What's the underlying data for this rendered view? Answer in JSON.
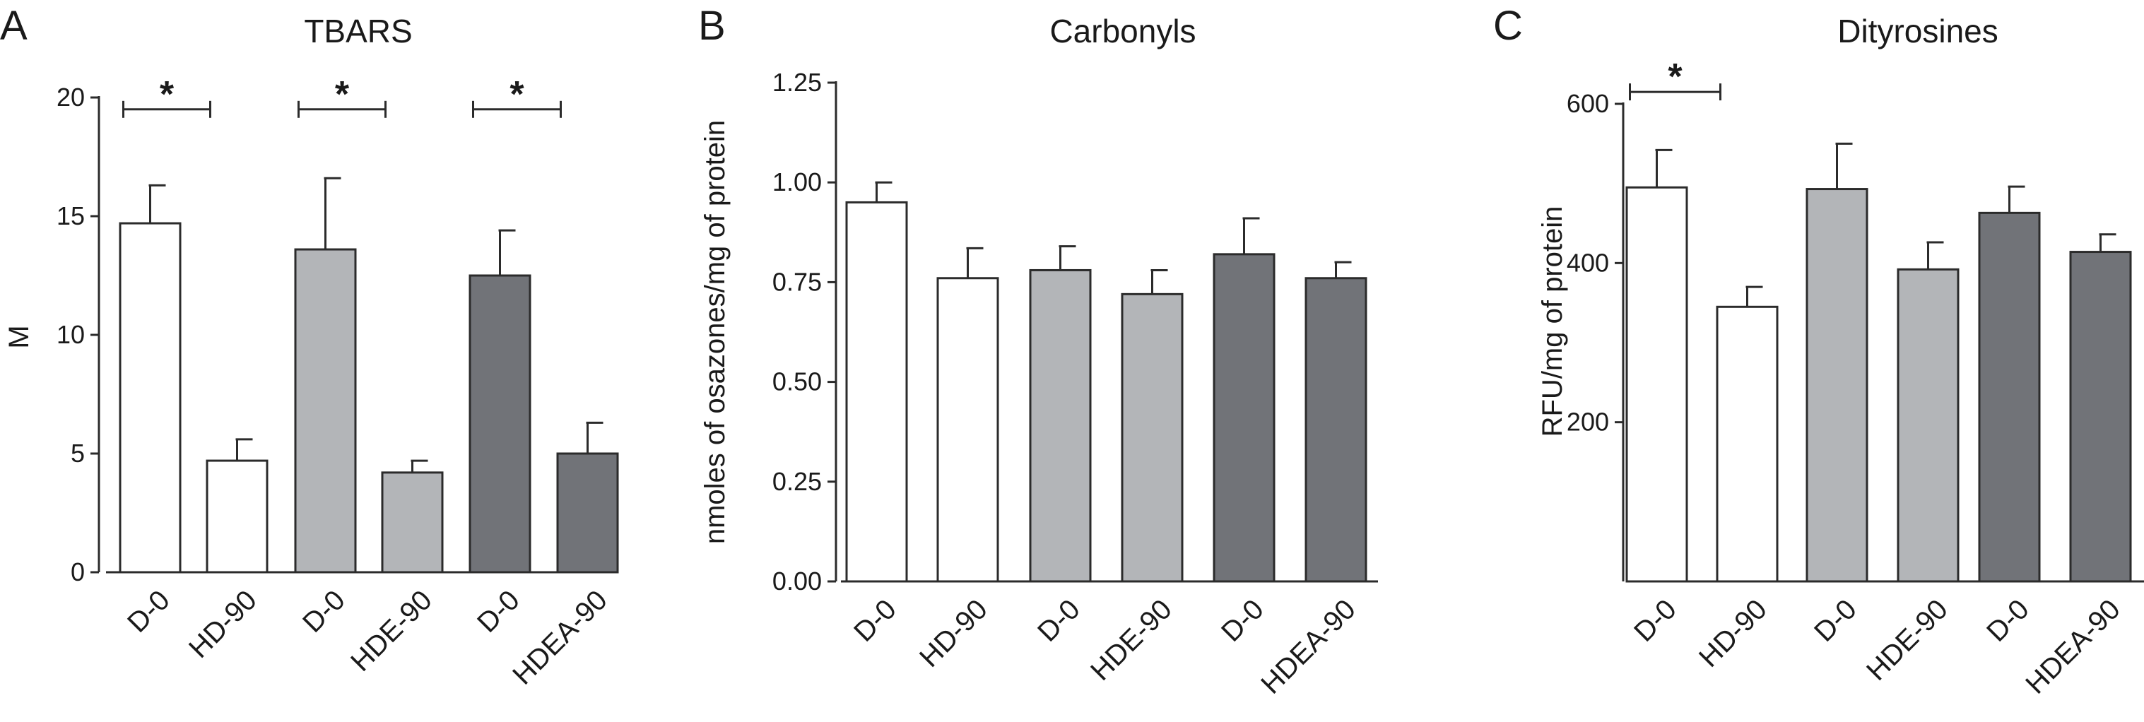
{
  "colors": {
    "white": "#ffffff",
    "light_gray": "#b3b5b8",
    "dark_gray": "#717378",
    "stroke": "#2b2b2b"
  },
  "chart_data": [
    {
      "type": "bar",
      "panel": "A",
      "title": "TBARS",
      "ylabel": "M",
      "xlabel": "",
      "ylim": [
        0,
        20
      ],
      "yticks": [
        0,
        5,
        10,
        15,
        20
      ],
      "ytick_labels": [
        "0",
        "5",
        "10",
        "15",
        "20"
      ],
      "categories": [
        "D-0",
        "HD-90",
        "D-0",
        "HDE-90",
        "D-0",
        "HDEA-90"
      ],
      "values": [
        14.7,
        4.7,
        13.6,
        4.2,
        12.5,
        5.0
      ],
      "errors": [
        1.6,
        0.9,
        3.0,
        0.5,
        1.9,
        1.3
      ],
      "bar_colors": [
        "white",
        "white",
        "light_gray",
        "light_gray",
        "dark_gray",
        "dark_gray"
      ],
      "significance": [
        {
          "from": 0,
          "to": 1,
          "label": "*"
        },
        {
          "from": 2,
          "to": 3,
          "label": "*"
        },
        {
          "from": 4,
          "to": 5,
          "label": "*"
        }
      ],
      "bracket_level": 19.5
    },
    {
      "type": "bar",
      "panel": "B",
      "title": "Carbonyls",
      "ylabel": "nmoles of osazones/mg of protein",
      "xlabel": "",
      "ylim": [
        0,
        1.25
      ],
      "yticks": [
        0,
        0.25,
        0.5,
        0.75,
        1.0,
        1.25
      ],
      "ytick_labels": [
        "0.00",
        "0.25",
        "0.50",
        "0.75",
        "1.00",
        "1.25"
      ],
      "categories": [
        "D-0",
        "HD-90",
        "D-0",
        "HDE-90",
        "D-0",
        "HDEA-90"
      ],
      "values": [
        0.95,
        0.76,
        0.78,
        0.72,
        0.82,
        0.76
      ],
      "errors": [
        0.05,
        0.075,
        0.06,
        0.06,
        0.09,
        0.04
      ],
      "bar_colors": [
        "white",
        "white",
        "light_gray",
        "light_gray",
        "dark_gray",
        "dark_gray"
      ],
      "significance": []
    },
    {
      "type": "bar",
      "panel": "C",
      "title": "Dityrosines",
      "ylabel": "RFU/mg of protein",
      "xlabel": "",
      "ylim": [
        0,
        600
      ],
      "axis_min": 0,
      "yticks": [
        200,
        400,
        600
      ],
      "ytick_labels": [
        "200",
        "400",
        "600"
      ],
      "categories": [
        "D-0",
        "HD-90",
        "D-0",
        "HDE-90",
        "D-0",
        "HDEA-90"
      ],
      "values": [
        495,
        345,
        493,
        392,
        463,
        414
      ],
      "errors": [
        47,
        25,
        57,
        34,
        33,
        22
      ],
      "bar_colors": [
        "white",
        "white",
        "light_gray",
        "light_gray",
        "dark_gray",
        "dark_gray"
      ],
      "significance": [
        {
          "from": 0,
          "to": 1,
          "label": "*"
        }
      ],
      "bracket_level": 615
    }
  ]
}
